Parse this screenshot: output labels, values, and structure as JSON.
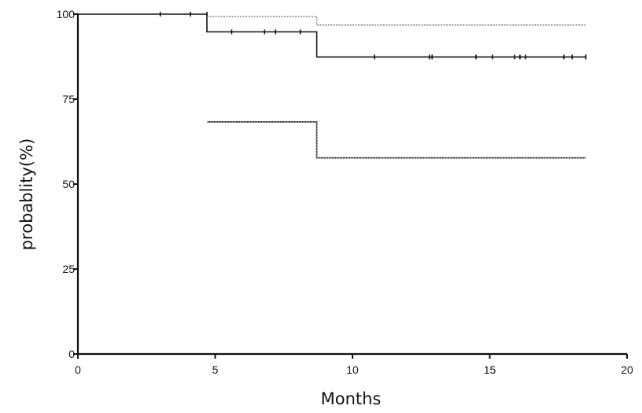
{
  "chart_data": {
    "type": "line",
    "title": "",
    "xlabel": "Months",
    "ylabel": "probablity(%)",
    "xlim": [
      0,
      20
    ],
    "ylim": [
      0,
      100
    ],
    "x_ticks": [
      0,
      5,
      10,
      15,
      20
    ],
    "x_tick_labels": [
      "0",
      "5",
      "10",
      "15",
      "20"
    ],
    "y_ticks": [
      0,
      25,
      50,
      75,
      100
    ],
    "y_tick_labels": [
      "0",
      "25",
      "50",
      "75",
      "100"
    ],
    "grid": false,
    "legend": "none",
    "series": [
      {
        "style": "solid",
        "color": "#111111",
        "steps": [
          [
            0,
            100
          ],
          [
            4.7,
            100
          ],
          [
            4.7,
            94.8
          ],
          [
            8.7,
            94.8
          ],
          [
            8.7,
            87.4
          ],
          [
            18.5,
            87.4
          ]
        ],
        "censored": [
          [
            3.0,
            100
          ],
          [
            4.1,
            100
          ],
          [
            4.7,
            100
          ],
          [
            5.6,
            94.8
          ],
          [
            6.8,
            94.8
          ],
          [
            7.2,
            94.8
          ],
          [
            8.1,
            94.8
          ],
          [
            10.8,
            87.4
          ],
          [
            12.8,
            87.4
          ],
          [
            12.9,
            87.4
          ],
          [
            14.5,
            87.4
          ],
          [
            15.1,
            87.4
          ],
          [
            15.9,
            87.4
          ],
          [
            16.1,
            87.4
          ],
          [
            16.3,
            87.4
          ],
          [
            17.7,
            87.4
          ],
          [
            18.0,
            87.4
          ],
          [
            18.5,
            87.4
          ]
        ]
      },
      {
        "style": "dotted",
        "color": "#888888",
        "steps": [
          [
            4.7,
            99.3
          ],
          [
            8.7,
            99.3
          ],
          [
            8.7,
            96.8
          ],
          [
            18.5,
            96.8
          ]
        ]
      },
      {
        "style": "solid",
        "color": "#111111",
        "steps": [
          [
            4.7,
            68.3
          ],
          [
            8.7,
            68.3
          ],
          [
            8.7,
            57.7
          ],
          [
            18.5,
            57.7
          ]
        ]
      },
      {
        "style": "dotted",
        "color": "#888888",
        "steps": [
          [
            4.7,
            68.3
          ],
          [
            8.7,
            68.3
          ],
          [
            8.7,
            57.7
          ],
          [
            18.5,
            57.7
          ]
        ]
      }
    ]
  }
}
